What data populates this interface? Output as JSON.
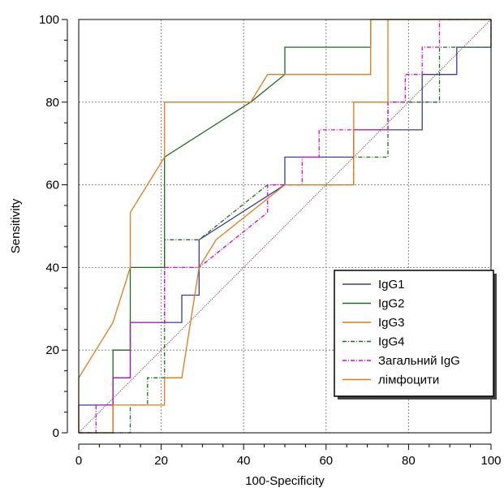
{
  "chart_data": {
    "type": "line",
    "xlabel": "100-Specificity",
    "ylabel": "Sensitivity",
    "xlim": [
      0,
      100
    ],
    "ylim": [
      0,
      100
    ],
    "xticks": [
      0,
      20,
      40,
      60,
      80,
      100
    ],
    "yticks": [
      0,
      20,
      40,
      60,
      80,
      100
    ],
    "grid": true,
    "legend_position": "bottom-right",
    "reference_line": {
      "x": [
        0,
        100
      ],
      "y": [
        0,
        100
      ],
      "color": "#7b1e1e"
    },
    "series": [
      {
        "name": "IgG1",
        "color": "#3b3b9b",
        "dash": "solid",
        "x": [
          0,
          0,
          4.2,
          4.2,
          8.3,
          8.3,
          12.5,
          12.5,
          25,
          25,
          29.2,
          29.2,
          50,
          50,
          66.7,
          66.7,
          83.3,
          83.3,
          91.7,
          91.7,
          100,
          100
        ],
        "y": [
          0,
          6.7,
          6.7,
          6.7,
          6.7,
          13.3,
          13.3,
          26.7,
          26.7,
          33.3,
          33.3,
          46.7,
          60,
          66.7,
          66.7,
          73.3,
          73.3,
          86.7,
          86.7,
          93.3,
          93.3,
          100
        ]
      },
      {
        "name": "IgG2",
        "color": "#1f6b1f",
        "dash": "solid",
        "x": [
          0,
          8.3,
          8.3,
          12.5,
          12.5,
          20.8,
          20.8,
          41.7,
          50,
          50,
          70.8,
          70.8,
          100
        ],
        "y": [
          0,
          0,
          20,
          20,
          40,
          40,
          66.7,
          80,
          86.7,
          93.3,
          93.3,
          100,
          100
        ]
      },
      {
        "name": "IgG3",
        "color": "#e07a1a",
        "dash": "solid",
        "x": [
          0,
          0,
          8.3,
          12.5,
          12.5,
          20.8,
          20.8,
          41.7,
          41.7,
          45.8,
          45.8,
          70.8,
          70.8,
          100
        ],
        "y": [
          0,
          13.3,
          26.7,
          40,
          53.3,
          66.7,
          80,
          80,
          80,
          86.7,
          86.7,
          86.7,
          100,
          100
        ]
      },
      {
        "name": "IgG4",
        "color": "#1f6b1f",
        "dash": "dashdot",
        "x": [
          0,
          12.5,
          12.5,
          16.7,
          16.7,
          20.8,
          20.8,
          29.2,
          29.2,
          45.8,
          45.8,
          66.7,
          66.7,
          75,
          75,
          87.5,
          87.5,
          100,
          100
        ],
        "y": [
          0,
          0,
          6.7,
          6.7,
          13.3,
          13.3,
          46.7,
          46.7,
          46.7,
          60,
          60,
          60,
          66.7,
          66.7,
          80,
          80,
          93.3,
          93.3,
          100
        ]
      },
      {
        "name": "Загальний IgG",
        "color": "#e000e0",
        "dash": "dashdot",
        "x": [
          0,
          4.2,
          4.2,
          8.3,
          8.3,
          12.5,
          12.5,
          20.8,
          20.8,
          29.2,
          45.8,
          45.8,
          54.2,
          54.2,
          58.3,
          58.3,
          75,
          75,
          79.2,
          79.2,
          83.3,
          83.3,
          87.5,
          87.5,
          100
        ],
        "y": [
          0,
          0,
          6.7,
          6.7,
          13.3,
          13.3,
          26.7,
          26.7,
          40,
          40,
          53.3,
          60,
          60,
          66.7,
          66.7,
          73.3,
          73.3,
          80,
          80,
          86.7,
          86.7,
          93.3,
          93.3,
          100,
          100
        ]
      },
      {
        "name": "лімфоцити",
        "color": "#e07a1a",
        "dash": "solid",
        "x": [
          0,
          8.3,
          8.3,
          20.8,
          20.8,
          25,
          25,
          29.2,
          29.2,
          33.3,
          50,
          50,
          66.7,
          66.7,
          70.8,
          70.8,
          75,
          75,
          100
        ],
        "y": [
          0,
          0,
          6.7,
          6.7,
          13.3,
          13.3,
          13.3,
          40,
          40,
          46.7,
          60,
          60,
          60,
          80,
          80,
          80,
          80,
          100,
          100
        ]
      }
    ]
  }
}
